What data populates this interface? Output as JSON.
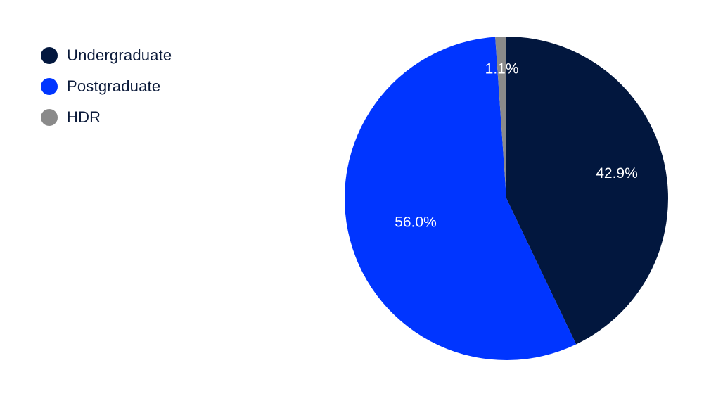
{
  "chart_data": {
    "type": "pie",
    "categories": [
      "Undergraduate",
      "Postgraduate",
      "HDR"
    ],
    "values": [
      42.9,
      56.0,
      1.1
    ],
    "data_labels": [
      "42.9%",
      "56.0%",
      "1.1%"
    ],
    "colors": [
      "#02173e",
      "#0035ff",
      "#8a8a8a"
    ],
    "start": "12 o'clock",
    "direction": "clockwise",
    "legend_position": "top-left"
  }
}
